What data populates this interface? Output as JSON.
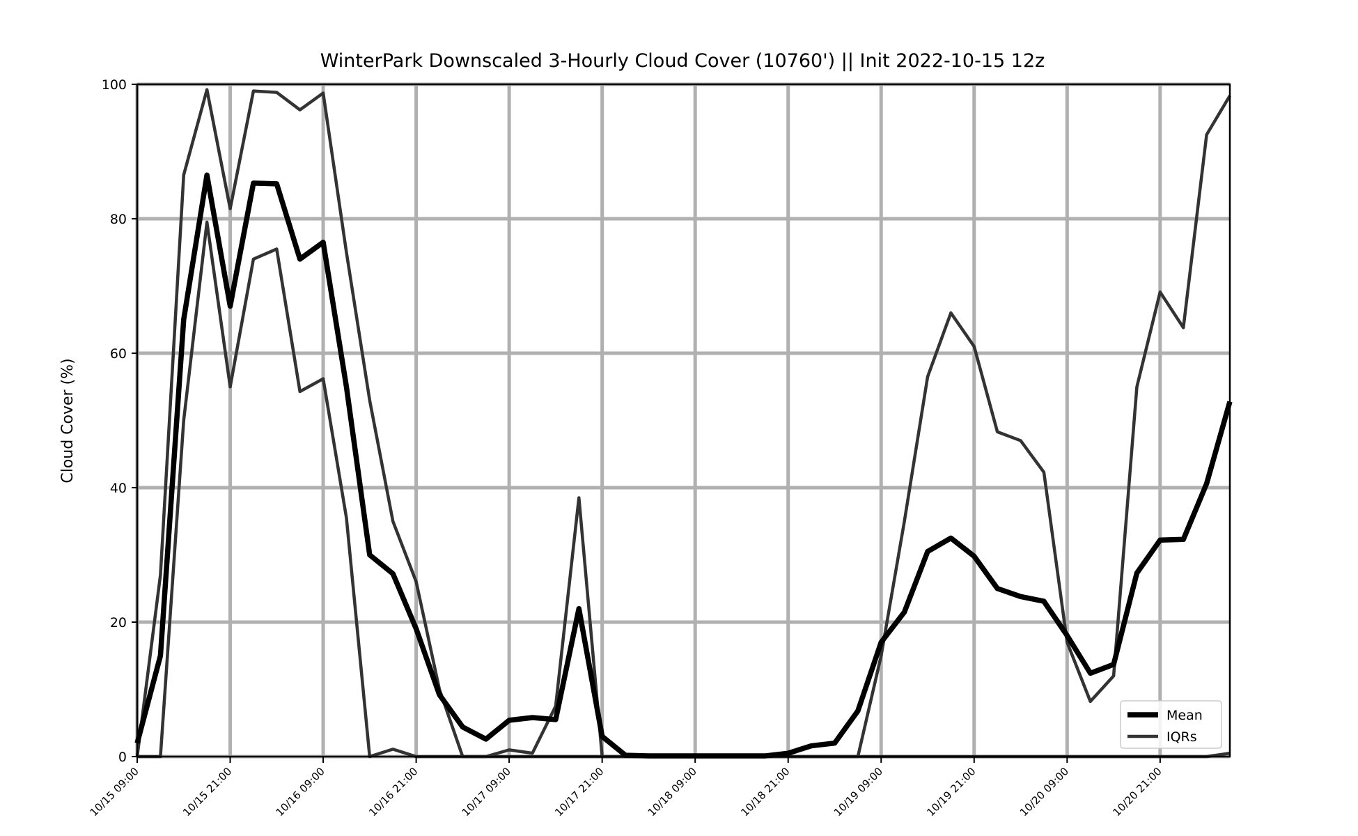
{
  "chart_data": {
    "type": "line",
    "title": "WinterPark Downscaled 3-Hourly Cloud Cover (10760') || Init 2022-10-15 12z",
    "ylabel": "Cloud Cover (%)",
    "xlabel": "",
    "ylim": [
      0,
      100
    ],
    "yticks": [
      0,
      20,
      40,
      60,
      80,
      100
    ],
    "x_step_hours": 3,
    "xticks": [
      "10/15 09:00",
      "10/15 21:00",
      "10/16 09:00",
      "10/16 21:00",
      "10/17 09:00",
      "10/17 21:00",
      "10/18 09:00",
      "10/18 21:00",
      "10/19 09:00",
      "10/19 21:00",
      "10/20 09:00",
      "10/20 21:00"
    ],
    "grid": true,
    "legend_position": "bottom-right",
    "colors": {
      "mean": "#000000",
      "iqr": "#333333",
      "grid": "#b0b0b0"
    },
    "series": [
      {
        "name": "Mean",
        "style": "thick",
        "values": [
          2,
          15,
          65,
          86.5,
          67,
          85.3,
          85.2,
          74,
          76.5,
          55,
          30,
          27.2,
          19,
          9.2,
          4.4,
          2.6,
          5.4,
          5.8,
          5.5,
          22,
          3,
          0.2,
          0.1,
          0.1,
          0.1,
          0.1,
          0.1,
          0.1,
          0.5,
          1.6,
          2,
          6.8,
          17,
          21.5,
          30.5,
          32.5,
          29.8,
          25,
          23.8,
          23.1,
          18,
          12.4,
          13.7,
          27.3,
          32.2,
          32.3,
          40.6,
          52.8
        ]
      },
      {
        "name": "IQRs",
        "style": "thin",
        "values": [
          0,
          27,
          86.5,
          99.2,
          81.5,
          99,
          98.8,
          96.2,
          98.7,
          75,
          53,
          35,
          26,
          10,
          0,
          0,
          1,
          0.5,
          7.5,
          38.5,
          0,
          0,
          0,
          0,
          0,
          0,
          0,
          0,
          0,
          0,
          0,
          0,
          15,
          35,
          56.5,
          66,
          61,
          48.3,
          47,
          42.3,
          17,
          8.2,
          12,
          55,
          69.1,
          63.8,
          92.5,
          98.3
        ]
      },
      {
        "name": "",
        "style": "thin",
        "values": [
          0,
          0,
          50,
          79.5,
          55,
          74,
          75.5,
          54.3,
          56.2,
          35.5,
          0,
          1.1,
          0,
          0,
          0,
          0,
          0,
          0,
          0,
          0,
          0,
          0,
          0,
          0,
          0,
          0,
          0,
          0,
          0,
          0,
          0,
          0,
          0,
          0,
          0,
          0,
          0,
          0,
          0,
          0,
          0,
          0,
          0,
          0,
          0,
          0,
          0,
          0.5
        ]
      }
    ]
  }
}
